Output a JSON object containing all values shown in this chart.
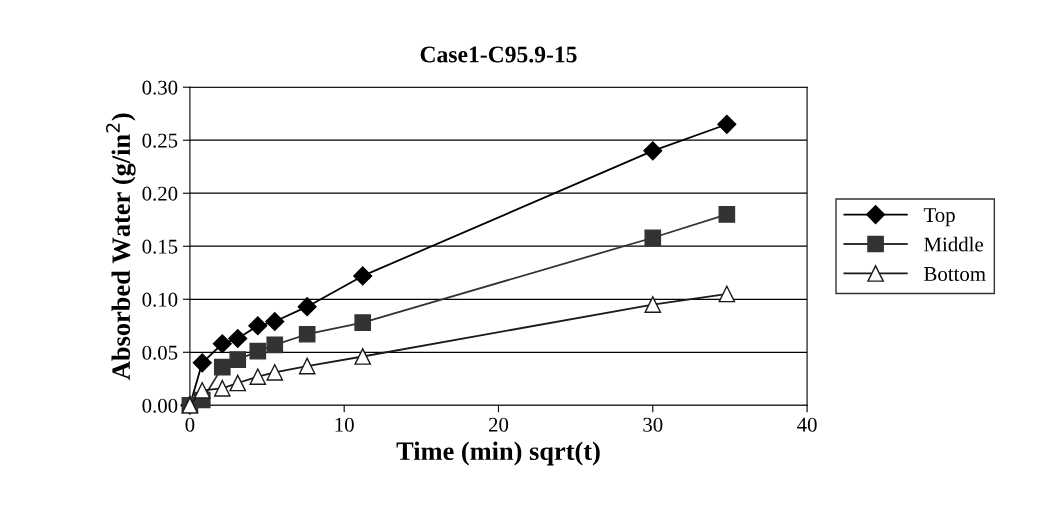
{
  "chart_data": {
    "type": "line",
    "title": "Case1-C95.9-15",
    "xlabel": "Time (min) sqrt(t)",
    "ylabel": "Absorbed Water (g/in$^{2}$)",
    "x": [
      0,
      0.8,
      2.1,
      3.1,
      4.4,
      5.5,
      7.6,
      11.2,
      30.0,
      34.8
    ],
    "series": [
      {
        "name": "Top",
        "color": "#000000",
        "marker": "diamond",
        "values": [
          0,
          0.04,
          0.058,
          0.063,
          0.075,
          0.079,
          0.093,
          0.122,
          0.24,
          0.265
        ]
      },
      {
        "name": "Middle",
        "color": "#333333",
        "marker": "square",
        "values": [
          0,
          0.005,
          0.036,
          0.043,
          0.051,
          0.057,
          0.067,
          0.078,
          0.158,
          0.18
        ]
      },
      {
        "name": "Bottom",
        "color": "#1a1a1a",
        "marker": "triangle",
        "values": [
          0,
          0.014,
          0.016,
          0.021,
          0.027,
          0.031,
          0.037,
          0.046,
          0.095,
          0.105
        ]
      }
    ],
    "xlim": [
      0,
      40
    ],
    "xticks": [
      0,
      10,
      20,
      30,
      40
    ],
    "ylim": [
      0,
      0.3
    ],
    "yticks": [
      {
        "value": 0,
        "label": "0.00"
      },
      {
        "value": 0.05,
        "label": "0.05"
      },
      {
        "value": 0.1,
        "label": "0.10"
      },
      {
        "value": 0.15,
        "label": "0.15"
      },
      {
        "value": 0.2,
        "label": "0.20"
      },
      {
        "value": 0.25,
        "label": "0.25"
      },
      {
        "value": 0.3,
        "label": "0.30"
      }
    ],
    "grid": "y",
    "legend": "right",
    "line_style": "solid"
  }
}
